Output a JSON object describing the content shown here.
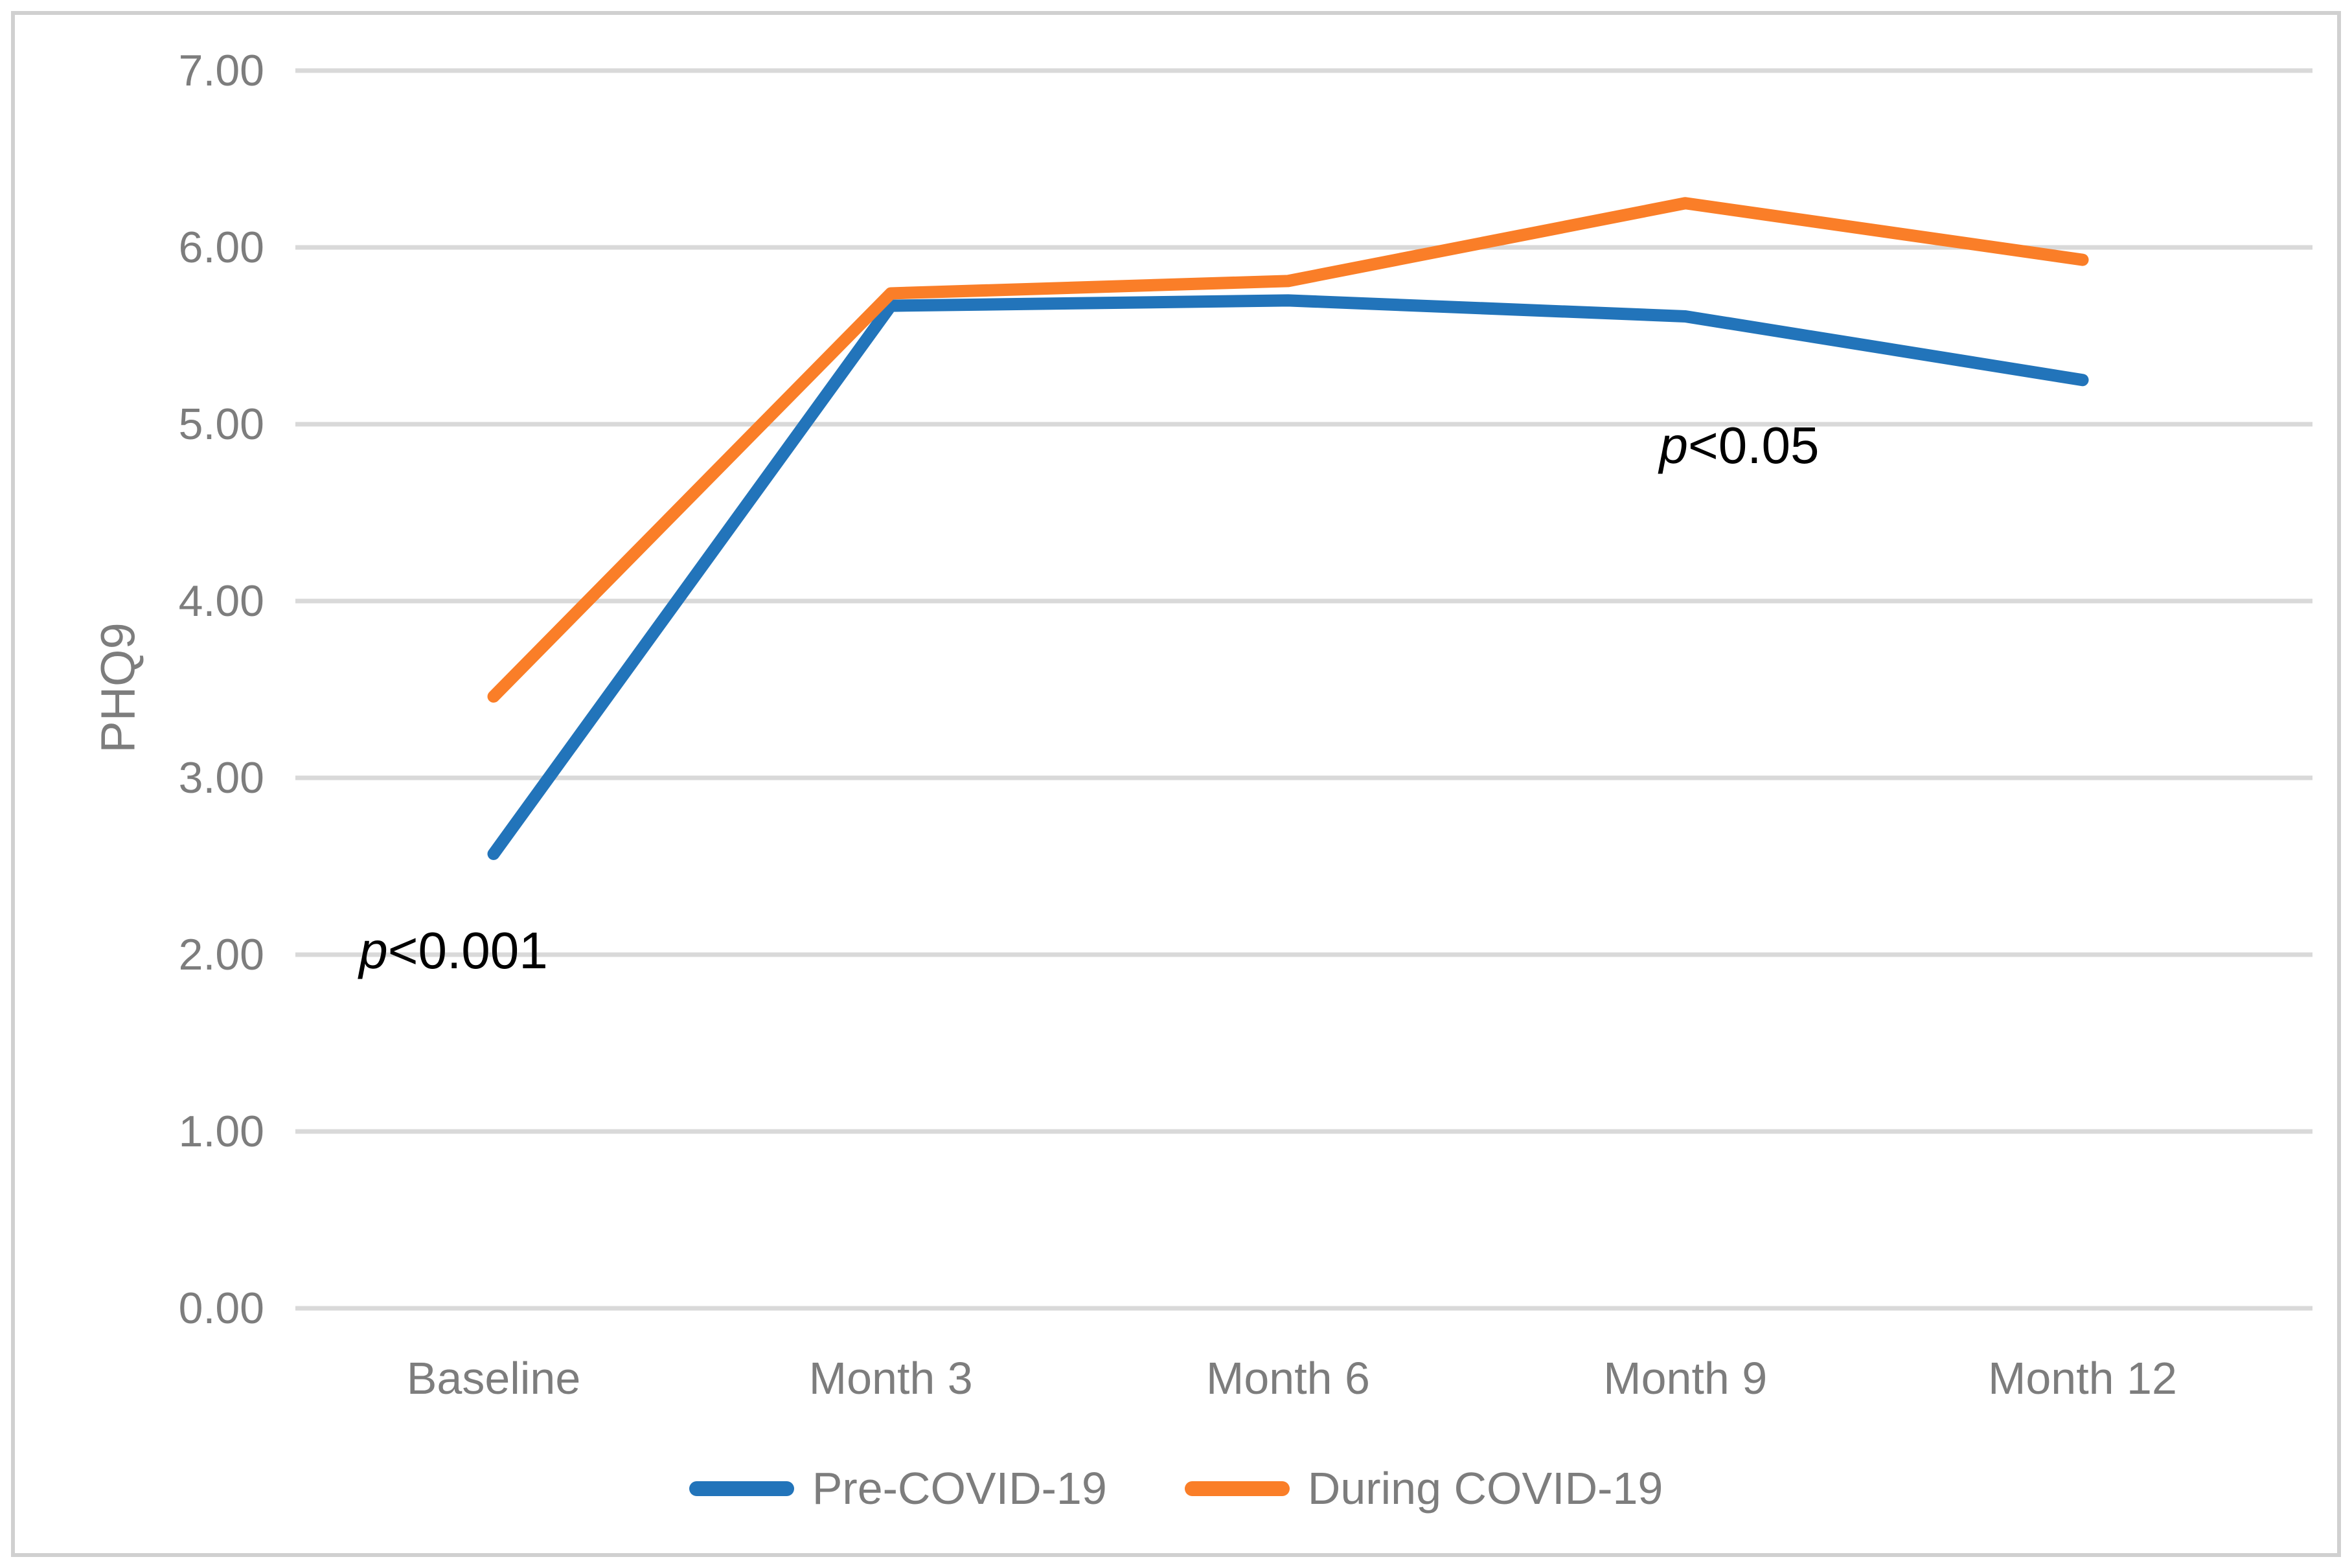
{
  "colors": {
    "pre_covid_blue": "#2274ba",
    "during_covid_orange": "#fa7e28",
    "gridline": "#d9d9d9",
    "axis_text": "#7d7d7d",
    "annotation_text": "#000000",
    "figure_border": "#d0d0d0"
  },
  "chart_data": {
    "type": "line",
    "title": "",
    "xlabel": "",
    "ylabel": "PHQ9",
    "categories": [
      "Baseline",
      "Month 3",
      "Month 6",
      "Month 9",
      "Month 12"
    ],
    "series": [
      {
        "name": "Pre-COVID-19",
        "color": "#2274ba",
        "values": [
          2.57,
          5.67,
          5.7,
          5.61,
          5.25
        ]
      },
      {
        "name": "During COVID-19",
        "color": "#fa7e28",
        "values": [
          3.46,
          5.74,
          5.81,
          6.25,
          5.93
        ]
      }
    ],
    "ylim": [
      0,
      7
    ],
    "y_tick_step": 1,
    "y_ticks": [
      "7.00",
      "6.00",
      "5.00",
      "4.00",
      "3.00",
      "2.00",
      "1.00",
      "0.00"
    ],
    "grid": true,
    "legend_position": "bottom",
    "annotations": [
      {
        "p": "p",
        "text": "<0.001",
        "anchor_category": "Baseline",
        "y": 2.0
      },
      {
        "p": "p",
        "text": "<0.05",
        "anchor_category": "Month 9",
        "y": 4.9
      }
    ]
  }
}
